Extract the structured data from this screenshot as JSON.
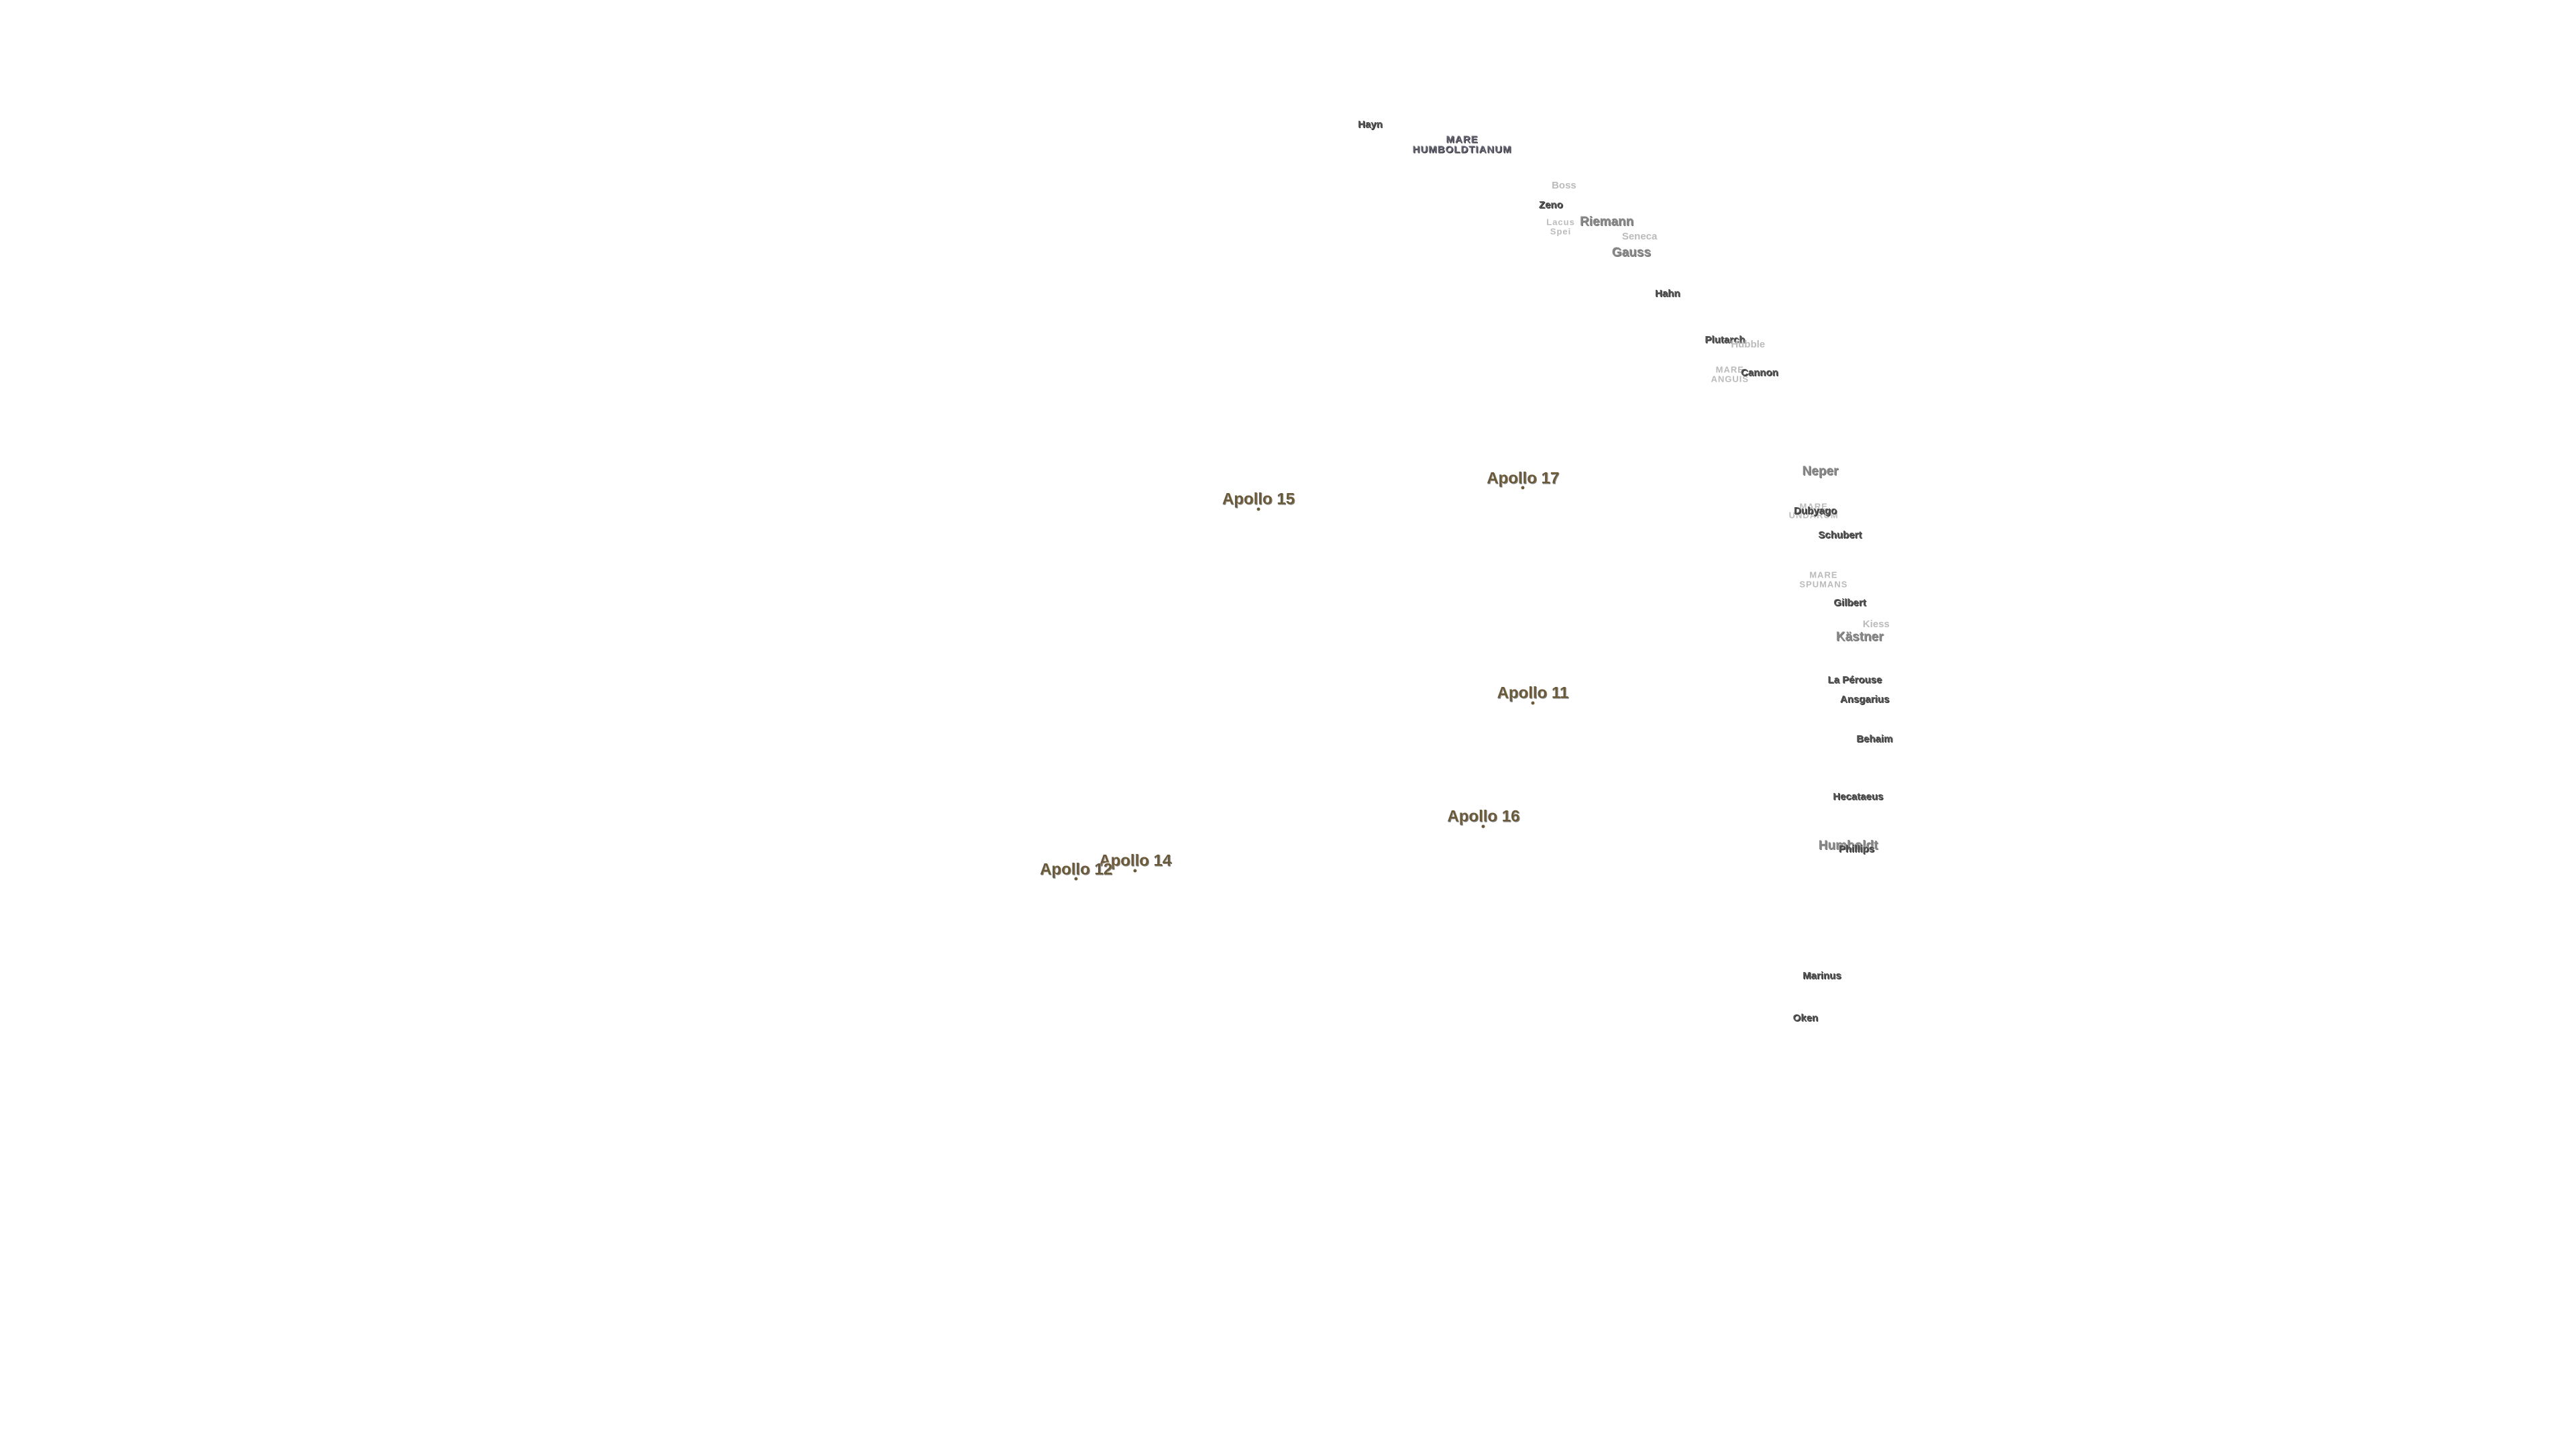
{
  "landing_sites": [
    "Apollo 17",
    "Apollo 15",
    "Apollo 11",
    "Apollo 16",
    "Apollo 14",
    "Apollo 12"
  ],
  "features": [
    {
      "lines": [
        "Hayn"
      ]
    },
    {
      "lines": [
        "MARE",
        "HUMBOLDTIANUM"
      ]
    },
    {
      "lines": [
        "Boss"
      ]
    },
    {
      "lines": [
        "Zeno"
      ]
    },
    {
      "lines": [
        "Lacus",
        "Spei"
      ]
    },
    {
      "lines": [
        "Riemann"
      ]
    },
    {
      "lines": [
        "Seneca"
      ]
    },
    {
      "lines": [
        "Gauss"
      ]
    },
    {
      "lines": [
        "Hahn"
      ]
    },
    {
      "lines": [
        "Plutarch"
      ]
    },
    {
      "lines": [
        "Hubble"
      ]
    },
    {
      "lines": [
        "MARE",
        "ANGUIS"
      ]
    },
    {
      "lines": [
        "Cannon"
      ]
    },
    {
      "lines": [
        "Neper"
      ]
    },
    {
      "lines": [
        "MARE",
        "UNDARUM"
      ]
    },
    {
      "lines": [
        "Dubyago"
      ]
    },
    {
      "lines": [
        "Schubert"
      ]
    },
    {
      "lines": [
        "MARE",
        "SPUMANS"
      ]
    },
    {
      "lines": [
        "Gilbert"
      ]
    },
    {
      "lines": [
        "Kiess"
      ]
    },
    {
      "lines": [
        "Kästner"
      ]
    },
    {
      "lines": [
        "La Pérouse"
      ]
    },
    {
      "lines": [
        "Ansgarius"
      ]
    },
    {
      "lines": [
        "Behaim"
      ]
    },
    {
      "lines": [
        "Hecataeus"
      ]
    },
    {
      "lines": [
        "Humboldt"
      ]
    },
    {
      "lines": [
        "Phillips"
      ]
    },
    {
      "lines": [
        "Marinus"
      ]
    },
    {
      "lines": [
        "Oken"
      ]
    }
  ]
}
